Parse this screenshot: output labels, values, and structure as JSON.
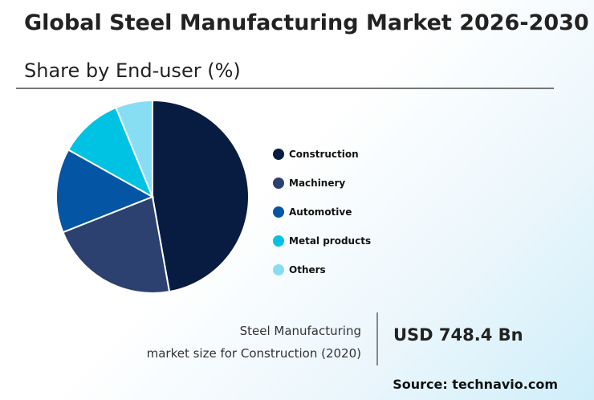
{
  "chart_data": {
    "type": "pie",
    "title": "Global Steel Manufacturing Market 2026-2030",
    "subtitle": "Share by End-user (%)",
    "categories": [
      "Construction",
      "Machinery",
      "Automotive",
      "Metal products",
      "Others"
    ],
    "values": [
      47.2,
      21.8,
      14.1,
      10.7,
      6.2
    ],
    "colors": [
      "#081c42",
      "#2c4170",
      "#0455a4",
      "#00c3e3",
      "#87def2"
    ],
    "start_angle": "top",
    "direction": "clockwise",
    "legend_position": "right"
  },
  "stat": {
    "label_line1": "Steel Manufacturing",
    "label_line2": "market size for Construction (2020)",
    "value": "USD 748.4 Bn"
  },
  "source": "Source: technavio.com"
}
